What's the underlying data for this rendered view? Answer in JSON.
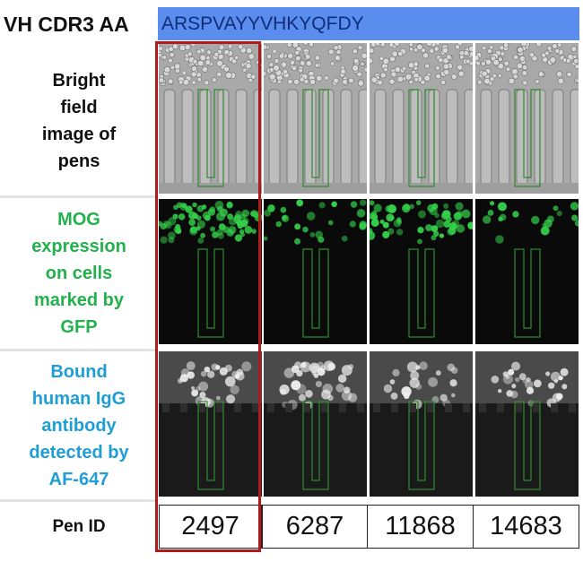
{
  "header": {
    "label": "VH CDR3 AA",
    "sequence": "ARSPVAYYVHKYQFDY"
  },
  "rows": [
    {
      "label_lines": [
        "Bright",
        "field",
        "image of",
        "pens"
      ],
      "color": "#111111"
    },
    {
      "label_lines": [
        "MOG",
        "expression",
        "on cells",
        "marked by",
        "GFP"
      ],
      "color": "#22b14c"
    },
    {
      "label_lines": [
        "Bound",
        "human IgG",
        "antibody",
        "detected by",
        "AF-647"
      ],
      "color": "#1f9ed6"
    }
  ],
  "pen_id_label": "Pen ID",
  "pens": [
    "2497",
    "6287",
    "11868",
    "14683"
  ],
  "colors": {
    "highlight": "#b01a1a",
    "header_bar": "#5b8def",
    "gfp": "#34d04a",
    "pen_outline": "#2e8b2e"
  }
}
